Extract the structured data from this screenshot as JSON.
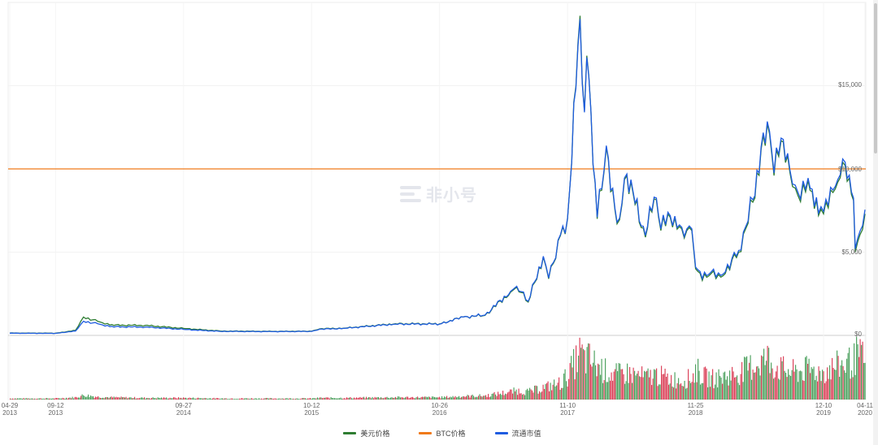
{
  "watermark": "非小号",
  "legend": [
    {
      "label": "美元价格",
      "color": "#2e7d32"
    },
    {
      "label": "BTC价格",
      "color": "#f07a1a"
    },
    {
      "label": "流通市值",
      "color": "#1f5ce0"
    }
  ],
  "chart_data": {
    "type": "line",
    "title": "",
    "y_ticks": [
      "$0",
      "$5,000",
      "$10,000",
      "$15,000"
    ],
    "ylim": [
      0,
      20000
    ],
    "x_ticks": [
      {
        "date": "2013-04-29",
        "line1": "04-29",
        "line2": "2013"
      },
      {
        "date": "2013-09-12",
        "line1": "09-12",
        "line2": "2013"
      },
      {
        "date": "2014-09-27",
        "line1": "09-27",
        "line2": "2014"
      },
      {
        "date": "2015-10-12",
        "line1": "10-12",
        "line2": "2015"
      },
      {
        "date": "2016-10-26",
        "line1": "10-26",
        "line2": "2016"
      },
      {
        "date": "2017-11-10",
        "line1": "11-10",
        "line2": "2017"
      },
      {
        "date": "2018-11-25",
        "line1": "11-25",
        "line2": "2018"
      },
      {
        "date": "2019-12-10",
        "line1": "12-10",
        "line2": "2019"
      },
      {
        "date": "2020-04-11",
        "line1": "04-11",
        "line2": "2020"
      }
    ],
    "xlim": [
      "2013-04-29",
      "2020-04-11"
    ],
    "grid": true,
    "legend_position": "bottom",
    "btc_price_level": 10000,
    "x": [
      "2013-04-29",
      "2013-09-12",
      "2013-11-10",
      "2013-12-04",
      "2014-01-15",
      "2014-02-20",
      "2014-06-05",
      "2014-09-27",
      "2015-01-14",
      "2015-06-15",
      "2015-10-12",
      "2015-11-05",
      "2016-01-15",
      "2016-06-17",
      "2016-10-26",
      "2017-01-04",
      "2017-03-10",
      "2017-05-25",
      "2017-06-12",
      "2017-07-16",
      "2017-08-30",
      "2017-09-15",
      "2017-10-20",
      "2017-11-10",
      "2017-12-17",
      "2017-12-30",
      "2018-01-06",
      "2018-02-06",
      "2018-03-05",
      "2018-04-06",
      "2018-05-05",
      "2018-06-29",
      "2018-07-25",
      "2018-08-14",
      "2018-09-04",
      "2018-10-15",
      "2018-11-14",
      "2018-11-25",
      "2018-12-15",
      "2019-01-10",
      "2019-02-08",
      "2019-04-02",
      "2019-05-14",
      "2019-06-26",
      "2019-07-16",
      "2019-08-06",
      "2019-09-01",
      "2019-09-25",
      "2019-10-25",
      "2019-11-25",
      "2019-12-10",
      "2020-01-14",
      "2020-02-12",
      "2020-03-08",
      "2020-03-13",
      "2020-04-11"
    ],
    "series": [
      {
        "name": "美元价格",
        "color": "#2e7d32",
        "values": [
          140,
          130,
          300,
          1100,
          850,
          620,
          600,
          420,
          260,
          240,
          250,
          390,
          430,
          700,
          690,
          1100,
          1200,
          2600,
          2900,
          2000,
          4700,
          3400,
          6000,
          7000,
          19200,
          13500,
          16800,
          7000,
          11300,
          6700,
          9600,
          5900,
          8200,
          6300,
          7300,
          6400,
          6300,
          4000,
          3300,
          3700,
          3500,
          5000,
          8000,
          12700,
          9600,
          11700,
          9800,
          8400,
          9300,
          7200,
          7300,
          8800,
          10200,
          8100,
          5000,
          7300
        ]
      },
      {
        "name": "流通市值",
        "color": "#1f5ce0",
        "values": [
          130,
          120,
          260,
          850,
          700,
          520,
          500,
          360,
          240,
          225,
          240,
          370,
          420,
          680,
          680,
          1100,
          1220,
          2650,
          2950,
          2050,
          4750,
          3450,
          6050,
          7050,
          19000,
          13400,
          16700,
          7100,
          11400,
          6800,
          9700,
          6000,
          8300,
          6400,
          7400,
          6500,
          6400,
          4100,
          3400,
          3800,
          3600,
          5100,
          8150,
          12850,
          9750,
          11850,
          9950,
          8600,
          9450,
          7350,
          7450,
          8950,
          10400,
          8250,
          5200,
          7550
        ]
      }
    ],
    "volume": [
      2,
      2,
      4,
      8,
      5,
      4,
      3,
      3,
      2,
      2,
      2,
      3,
      3,
      4,
      4,
      6,
      7,
      14,
      16,
      14,
      22,
      24,
      30,
      45,
      85,
      70,
      75,
      60,
      50,
      45,
      48,
      40,
      45,
      42,
      38,
      35,
      40,
      55,
      42,
      38,
      40,
      48,
      62,
      75,
      60,
      55,
      50,
      50,
      55,
      50,
      50,
      60,
      65,
      70,
      80,
      72
    ]
  }
}
